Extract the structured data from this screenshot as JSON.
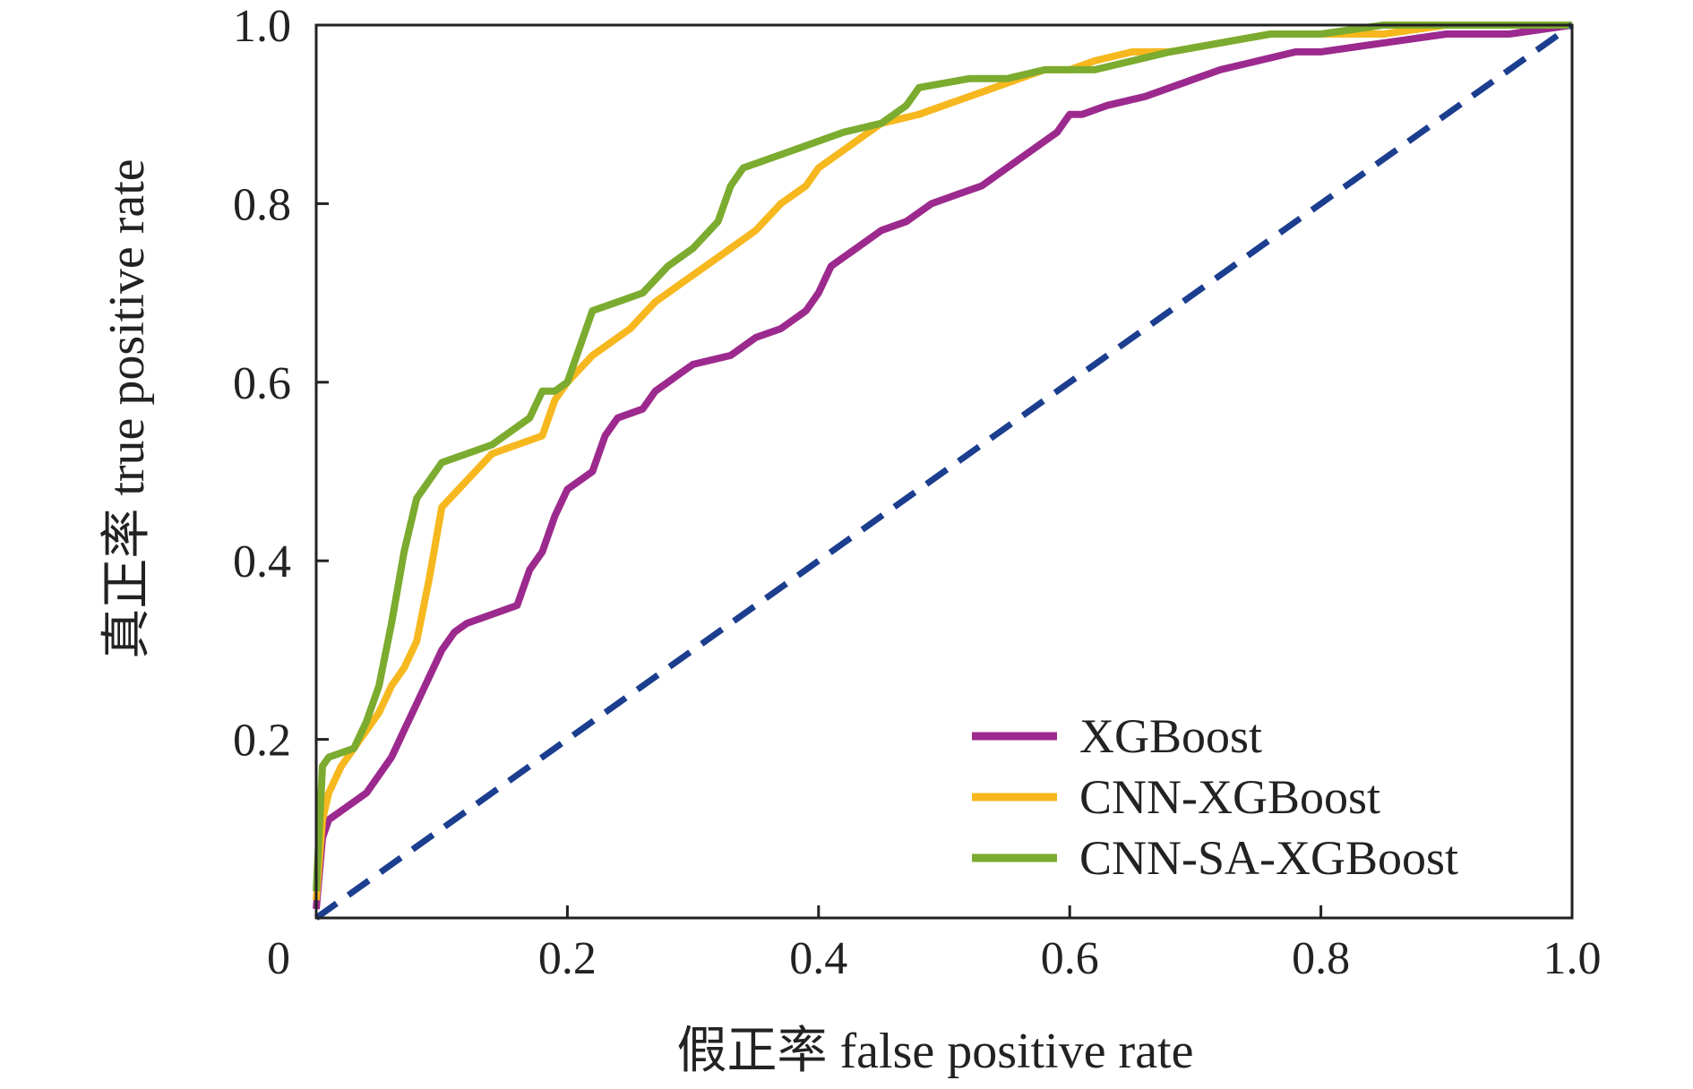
{
  "chart_data": {
    "type": "line",
    "title": "",
    "xlabel": "假正率 false positive rate",
    "ylabel": "真正率 true positive rate",
    "xlim": [
      0,
      1.0
    ],
    "ylim": [
      0,
      1.0
    ],
    "x_tick_labels": [
      "0",
      "0.2",
      "0.4",
      "0.6",
      "0.8",
      "1.0"
    ],
    "x_ticks": [
      0,
      0.2,
      0.4,
      0.6,
      0.8,
      1.0
    ],
    "y_tick_labels": [
      "0.2",
      "0.4",
      "0.6",
      "0.8",
      "1.0"
    ],
    "y_ticks": [
      0.2,
      0.4,
      0.6,
      0.8,
      1.0
    ],
    "grid": false,
    "legend_position": "bottom-right",
    "series": [
      {
        "name": "XGBoost",
        "color": "#9C2A8E",
        "style": "solid",
        "x": [
          0,
          0.005,
          0.01,
          0.02,
          0.04,
          0.05,
          0.06,
          0.07,
          0.08,
          0.09,
          0.1,
          0.11,
          0.12,
          0.14,
          0.16,
          0.17,
          0.18,
          0.19,
          0.2,
          0.22,
          0.23,
          0.24,
          0.26,
          0.27,
          0.28,
          0.29,
          0.3,
          0.33,
          0.35,
          0.37,
          0.39,
          0.4,
          0.41,
          0.42,
          0.43,
          0.45,
          0.47,
          0.49,
          0.51,
          0.53,
          0.55,
          0.57,
          0.59,
          0.6,
          0.61,
          0.63,
          0.66,
          0.68,
          0.7,
          0.72,
          0.75,
          0.78,
          0.8,
          0.85,
          0.9,
          0.95,
          1.0
        ],
        "y": [
          0.01,
          0.09,
          0.11,
          0.12,
          0.14,
          0.16,
          0.18,
          0.21,
          0.24,
          0.27,
          0.3,
          0.32,
          0.33,
          0.34,
          0.35,
          0.39,
          0.41,
          0.45,
          0.48,
          0.5,
          0.54,
          0.56,
          0.57,
          0.59,
          0.6,
          0.61,
          0.62,
          0.63,
          0.65,
          0.66,
          0.68,
          0.7,
          0.73,
          0.74,
          0.75,
          0.77,
          0.78,
          0.8,
          0.81,
          0.82,
          0.84,
          0.86,
          0.88,
          0.9,
          0.9,
          0.91,
          0.92,
          0.93,
          0.94,
          0.95,
          0.96,
          0.97,
          0.97,
          0.98,
          0.99,
          0.99,
          1.0
        ]
      },
      {
        "name": "CNN-XGBoost",
        "color": "#F6B81E",
        "style": "solid",
        "x": [
          0,
          0.005,
          0.01,
          0.02,
          0.03,
          0.05,
          0.06,
          0.07,
          0.08,
          0.09,
          0.1,
          0.12,
          0.14,
          0.16,
          0.18,
          0.19,
          0.2,
          0.22,
          0.23,
          0.25,
          0.27,
          0.29,
          0.31,
          0.33,
          0.35,
          0.37,
          0.39,
          0.4,
          0.42,
          0.44,
          0.45,
          0.48,
          0.5,
          0.52,
          0.54,
          0.56,
          0.58,
          0.6,
          0.62,
          0.65,
          0.68,
          0.72,
          0.76,
          0.8,
          0.85,
          0.9,
          0.95,
          1.0
        ],
        "y": [
          0.02,
          0.11,
          0.14,
          0.17,
          0.19,
          0.23,
          0.26,
          0.28,
          0.31,
          0.38,
          0.46,
          0.49,
          0.52,
          0.53,
          0.54,
          0.58,
          0.6,
          0.63,
          0.64,
          0.66,
          0.69,
          0.71,
          0.73,
          0.75,
          0.77,
          0.8,
          0.82,
          0.84,
          0.86,
          0.88,
          0.89,
          0.9,
          0.91,
          0.92,
          0.93,
          0.94,
          0.95,
          0.95,
          0.96,
          0.97,
          0.97,
          0.98,
          0.99,
          0.99,
          0.99,
          1.0,
          1.0,
          1.0
        ]
      },
      {
        "name": "CNN-SA-XGBoost",
        "color": "#7BAB2F",
        "style": "solid",
        "x": [
          0,
          0.005,
          0.01,
          0.03,
          0.04,
          0.05,
          0.06,
          0.07,
          0.08,
          0.09,
          0.1,
          0.12,
          0.14,
          0.16,
          0.17,
          0.18,
          0.19,
          0.2,
          0.21,
          0.22,
          0.24,
          0.26,
          0.28,
          0.3,
          0.32,
          0.33,
          0.34,
          0.36,
          0.38,
          0.4,
          0.42,
          0.45,
          0.46,
          0.47,
          0.48,
          0.52,
          0.55,
          0.58,
          0.62,
          0.65,
          0.68,
          0.72,
          0.76,
          0.8,
          0.85,
          0.9,
          1.0
        ],
        "y": [
          0.03,
          0.17,
          0.18,
          0.19,
          0.22,
          0.26,
          0.33,
          0.41,
          0.47,
          0.49,
          0.51,
          0.52,
          0.53,
          0.55,
          0.56,
          0.59,
          0.59,
          0.6,
          0.64,
          0.68,
          0.69,
          0.7,
          0.73,
          0.75,
          0.78,
          0.82,
          0.84,
          0.85,
          0.86,
          0.87,
          0.88,
          0.89,
          0.9,
          0.91,
          0.93,
          0.94,
          0.94,
          0.95,
          0.95,
          0.96,
          0.97,
          0.98,
          0.99,
          0.99,
          1.0,
          1.0,
          1.0
        ]
      },
      {
        "name": "",
        "color": "#1B3E8F",
        "style": "dashed",
        "x": [
          0,
          1.0
        ],
        "y": [
          0,
          1.0
        ]
      }
    ]
  }
}
